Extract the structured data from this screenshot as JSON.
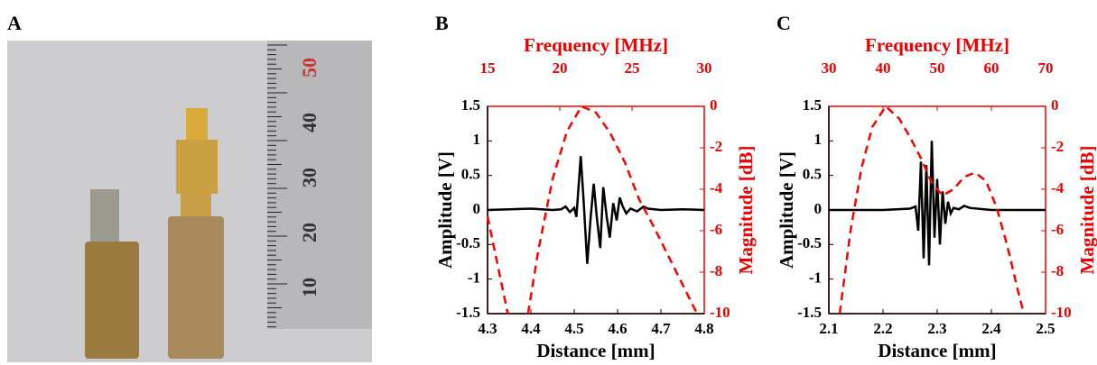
{
  "photo": {
    "panel": "A",
    "ruler_labels": [
      "50",
      "40",
      "30",
      "20",
      "10"
    ]
  },
  "chart_data": [
    {
      "type": "line",
      "panel": "B",
      "xlabel": "Distance [mm]",
      "ylabel": "Amplitude [V]",
      "x2label": "Frequency [MHz]",
      "y2label": "Magnitude [dB]",
      "xlim": [
        4.3,
        4.8
      ],
      "xticks": [
        4.3,
        4.4,
        4.5,
        4.6,
        4.7,
        4.8
      ],
      "x2lim": [
        15,
        30
      ],
      "x2ticks": [
        15,
        20,
        25,
        30
      ],
      "ylim": [
        -1.5,
        1.5
      ],
      "yticks": [
        -1.5,
        -1,
        -0.5,
        0,
        0.5,
        1,
        1.5
      ],
      "y2lim": [
        -10,
        0
      ],
      "y2ticks": [
        -10,
        -8,
        -6,
        -4,
        -2,
        0
      ],
      "series": [
        {
          "color": "#000000",
          "x": [
            4.3,
            4.35,
            4.4,
            4.45,
            4.47,
            4.48,
            4.49,
            4.5,
            4.505,
            4.515,
            4.522,
            4.53,
            4.538,
            4.545,
            4.552,
            4.56,
            4.567,
            4.575,
            4.582,
            4.59,
            4.598,
            4.605,
            4.612,
            4.62,
            4.63,
            4.645,
            4.66,
            4.67,
            4.7,
            4.75,
            4.8
          ],
          "values": [
            0,
            0.01,
            0.02,
            0,
            0.01,
            0.05,
            -0.03,
            0.03,
            -0.1,
            0.78,
            0.1,
            -0.78,
            -0.1,
            0.38,
            -0.1,
            -0.55,
            0.33,
            -0.1,
            -0.4,
            0.1,
            -0.15,
            0.18,
            0.05,
            -0.05,
            0.02,
            -0.02,
            0.05,
            0.02,
            0,
            0.01,
            0
          ]
        },
        {
          "color": "#ff0000",
          "dashed": true,
          "xaxis": "x2",
          "axis": "y2",
          "x": [
            15,
            15.8,
            16.4,
            null,
            17.8,
            18.5,
            19.5,
            20.5,
            21.5,
            22.5,
            23.5,
            24.5,
            25.5,
            26.5,
            27.5,
            28.5,
            29.5
          ],
          "values": [
            -5.3,
            -8,
            -10,
            null,
            -10,
            -7,
            -3.5,
            -1.2,
            0,
            -0.3,
            -1.3,
            -2.7,
            -4.5,
            -5.8,
            -7.2,
            -8.6,
            -10
          ]
        }
      ]
    },
    {
      "type": "line",
      "panel": "C",
      "xlabel": "Distance [mm]",
      "ylabel": "Amplitude [V]",
      "x2label": "Frequency [MHz]",
      "y2label": "Magnitude [dB]",
      "xlim": [
        2.1,
        2.5
      ],
      "xticks": [
        2.1,
        2.2,
        2.3,
        2.4,
        2.5
      ],
      "x2lim": [
        30,
        70
      ],
      "x2ticks": [
        30,
        40,
        50,
        60,
        70
      ],
      "ylim": [
        -1.5,
        1.5
      ],
      "yticks": [
        -1.5,
        -1,
        -0.5,
        0,
        0.5,
        1,
        1.5
      ],
      "y2lim": [
        -10,
        0
      ],
      "y2ticks": [
        -10,
        -8,
        -6,
        -4,
        -2,
        0
      ],
      "series": [
        {
          "color": "#000000",
          "x": [
            2.1,
            2.2,
            2.25,
            2.26,
            2.265,
            2.27,
            2.275,
            2.28,
            2.285,
            2.29,
            2.295,
            2.3,
            2.305,
            2.31,
            2.315,
            2.32,
            2.325,
            2.33,
            2.34,
            2.35,
            2.36,
            2.4,
            2.45,
            2.5
          ],
          "values": [
            0,
            0,
            0.02,
            0.05,
            -0.3,
            0.7,
            -0.7,
            0.65,
            -0.8,
            1.0,
            -0.4,
            0.45,
            -0.5,
            0.27,
            -0.2,
            0.12,
            -0.05,
            0.03,
            0.01,
            0.06,
            0.03,
            0,
            0,
            0
          ]
        },
        {
          "color": "#ff0000",
          "dashed": true,
          "xaxis": "x2",
          "axis": "y2",
          "x": [
            32,
            34,
            36,
            38,
            40.5,
            43,
            45,
            47,
            49,
            51,
            53,
            55,
            57,
            59,
            61,
            63,
            65,
            66
          ],
          "values": [
            -10,
            -6,
            -3,
            -1,
            0,
            -0.6,
            -1.5,
            -2.5,
            -3.7,
            -4.3,
            -4.0,
            -3.4,
            -3.2,
            -3.6,
            -4.9,
            -6.8,
            -9,
            -10
          ]
        }
      ]
    }
  ]
}
